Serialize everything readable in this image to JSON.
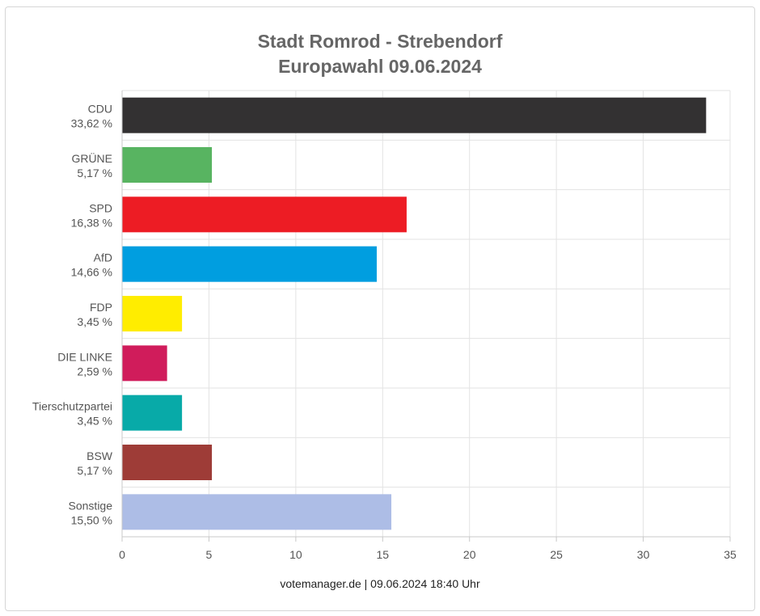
{
  "chart_data": {
    "type": "bar",
    "orientation": "horizontal",
    "title": "Stadt Romrod - Strebendorf",
    "subtitle": "Europawahl 09.06.2024",
    "categories": [
      "CDU",
      "GRÜNE",
      "SPD",
      "AfD",
      "FDP",
      "DIE LINKE",
      "Tierschutzpartei",
      "BSW",
      "Sonstige"
    ],
    "value_labels": [
      "33,62 %",
      "5,17 %",
      "16,38 %",
      "14,66 %",
      "3,45 %",
      "2,59 %",
      "3,45 %",
      "5,17 %",
      "15,50 %"
    ],
    "values": [
      33.62,
      5.17,
      16.38,
      14.66,
      3.45,
      2.59,
      3.45,
      5.17,
      15.5
    ],
    "colors": [
      "#333132",
      "#58b461",
      "#ed1c24",
      "#009ee0",
      "#ffed00",
      "#d01c5b",
      "#08aaa8",
      "#9e3c37",
      "#adbde6"
    ],
    "xlim": [
      0,
      35
    ],
    "xticks": [
      "0",
      "5",
      "10",
      "15",
      "20",
      "25",
      "30",
      "35"
    ],
    "xlabel": "",
    "ylabel": "",
    "grid": true,
    "legend": "none"
  },
  "footer": "votemanager.de | 09.06.2024 18:40 Uhr"
}
